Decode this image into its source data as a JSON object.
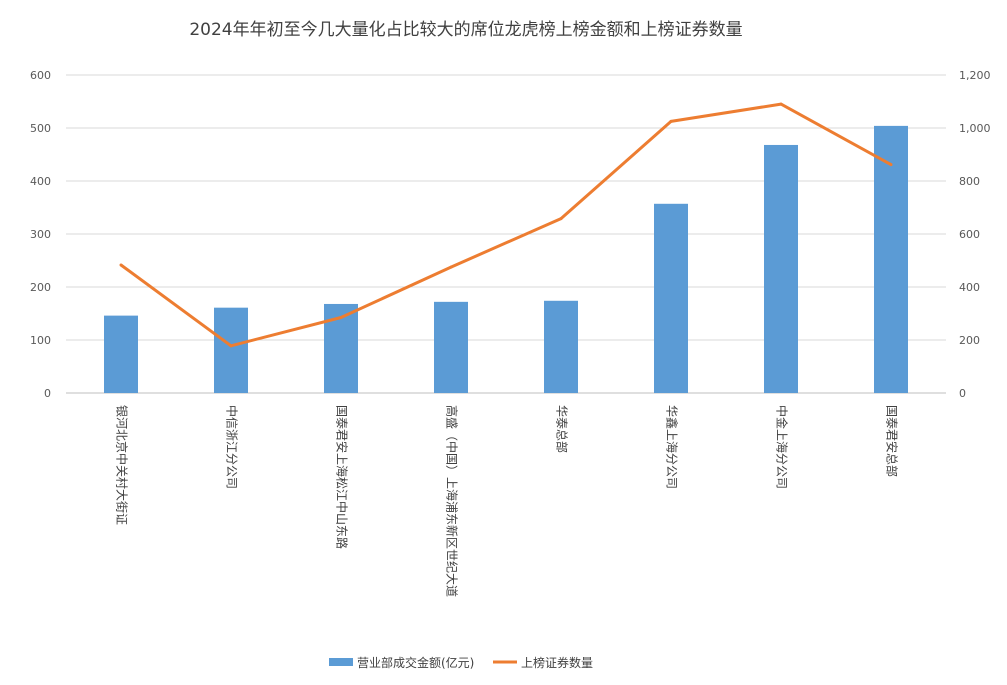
{
  "chart_data": {
    "type": "bar",
    "title": "2024年年初至今几大量化占比较大的席位龙虎榜上榜金额和上榜证券数量",
    "categories": [
      "银河北京中关村大街证",
      "中信浙江分公司",
      "国泰君安上海松江中山东路",
      "高盛（中国）上海浦东新区世纪大道",
      "华泰总部",
      "华鑫上海分公司",
      "中金上海分公司",
      "国泰君安总部"
    ],
    "series": [
      {
        "name": "营业部成交金额(亿元)",
        "type": "bar",
        "axis": "left",
        "color": "#5b9bd5",
        "values": [
          146,
          161,
          168,
          172,
          174,
          357,
          468,
          504
        ]
      },
      {
        "name": "上榜证券数量",
        "type": "line",
        "axis": "right",
        "color": "#ed7d31",
        "values": [
          483,
          178,
          285,
          475,
          658,
          1025,
          1090,
          862
        ]
      }
    ],
    "y_left": {
      "min": 0,
      "max": 600,
      "step": 100,
      "tick_labels": [
        "0",
        "100",
        "200",
        "300",
        "400",
        "500",
        "600"
      ]
    },
    "y_right": {
      "min": 0,
      "max": 1200,
      "step": 200,
      "tick_labels": [
        "0",
        "200",
        "400",
        "600",
        "800",
        "1,000",
        "1,200"
      ]
    },
    "grid": true,
    "legend_position": "bottom"
  }
}
